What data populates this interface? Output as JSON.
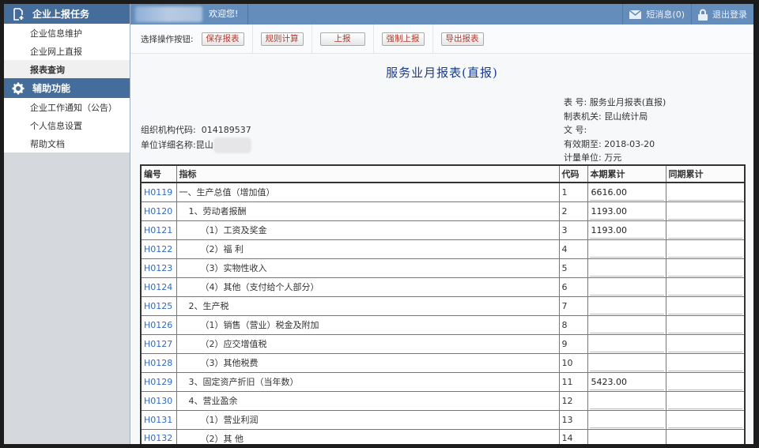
{
  "sidebar": {
    "sections": [
      {
        "title": "企业上报任务",
        "icon": "add-document-icon",
        "items": [
          "企业信息维护",
          "企业网上直报",
          "报表查询"
        ],
        "active": "报表查询"
      },
      {
        "title": "辅助功能",
        "icon": "gear-icon",
        "items": [
          "企业工作通知（公告）",
          "个人信息设置",
          "帮助文档"
        ]
      }
    ]
  },
  "topbar": {
    "welcome": "欢迎您!",
    "messages": "短消息(0)",
    "logout": "退出登录"
  },
  "toolbar": {
    "label": "选择操作按钮:",
    "buttons": [
      "保存报表",
      "规则计算",
      "上报",
      "强制上报",
      "导出报表"
    ]
  },
  "report": {
    "title": "服务业月报表(直报)",
    "meta_right": [
      {
        "label": "表 号:",
        "value": "服务业月报表(直报)"
      },
      {
        "label": "制表机关:",
        "value": "昆山统计局"
      },
      {
        "label": "文 号:",
        "value": ""
      },
      {
        "label": "有效期至:",
        "value": "2018-03-20"
      },
      {
        "label": "计量单位:",
        "value": "万元"
      }
    ],
    "org_code_label": "组织机构代码:",
    "org_code": "014189537",
    "unit_name_label": "单位详细名称:",
    "unit_name": "昆山"
  },
  "table": {
    "headers": [
      "编号",
      "指标",
      "代码",
      "本期累计",
      "同期累计"
    ],
    "rows": [
      {
        "id": "H0119",
        "name": "一、生产总值（增加值）",
        "indent": 0,
        "code": "1",
        "current": "6616.00",
        "prior": ""
      },
      {
        "id": "H0120",
        "name": "1、劳动者报酬",
        "indent": 1,
        "code": "2",
        "current": "1193.00",
        "prior": ""
      },
      {
        "id": "H0121",
        "name": "（1）工资及奖金",
        "indent": 2,
        "code": "3",
        "current": "1193.00",
        "prior": ""
      },
      {
        "id": "H0122",
        "name": "（2）福  利",
        "indent": 2,
        "code": "4",
        "current": "",
        "prior": ""
      },
      {
        "id": "H0123",
        "name": "（3）实物性收入",
        "indent": 2,
        "code": "5",
        "current": "",
        "prior": ""
      },
      {
        "id": "H0124",
        "name": "（4）其他（支付给个人部分）",
        "indent": 2,
        "code": "6",
        "current": "",
        "prior": ""
      },
      {
        "id": "H0125",
        "name": "2、生产税",
        "indent": 1,
        "code": "7",
        "current": "",
        "prior": ""
      },
      {
        "id": "H0126",
        "name": "（1）销售（营业）税金及附加",
        "indent": 2,
        "code": "8",
        "current": "",
        "prior": ""
      },
      {
        "id": "H0127",
        "name": "（2）应交增值税",
        "indent": 2,
        "code": "9",
        "current": "",
        "prior": ""
      },
      {
        "id": "H0128",
        "name": "（3）其他税费",
        "indent": 2,
        "code": "10",
        "current": "",
        "prior": ""
      },
      {
        "id": "H0129",
        "name": "3、固定资产折旧（当年数）",
        "indent": 1,
        "code": "11",
        "current": "5423.00",
        "prior": ""
      },
      {
        "id": "H0130",
        "name": "4、营业盈余",
        "indent": 1,
        "code": "12",
        "current": "",
        "prior": ""
      },
      {
        "id": "H0131",
        "name": "（1）营业利润",
        "indent": 2,
        "code": "13",
        "current": "",
        "prior": ""
      },
      {
        "id": "H0132",
        "name": "（2）其  他",
        "indent": 2,
        "code": "14",
        "current": "",
        "prior": ""
      }
    ]
  }
}
